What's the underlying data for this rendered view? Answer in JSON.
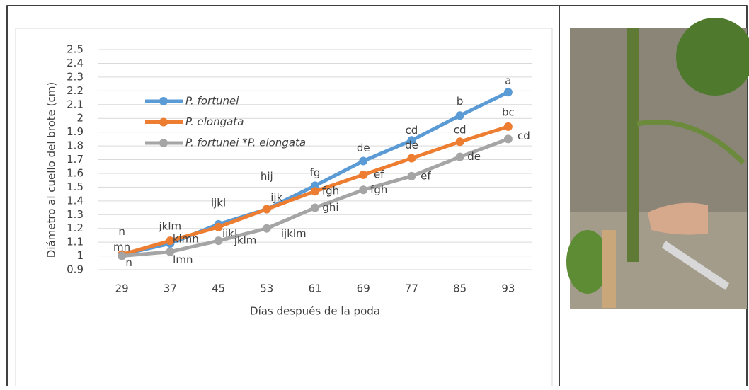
{
  "chart_data": {
    "type": "line",
    "y_label": "Diámetro al cuello del brote (cm)",
    "x_label": "Días después de la poda",
    "categories": [
      29,
      37,
      45,
      53,
      61,
      69,
      77,
      85,
      93
    ],
    "ylim": [
      0.9,
      2.5
    ],
    "yticks": [
      0.9,
      1,
      1.1,
      1.2,
      1.3,
      1.4,
      1.5,
      1.6,
      1.7,
      1.8,
      1.9,
      2,
      2.1,
      2.2,
      2.3,
      2.4,
      2.5
    ],
    "grid": true,
    "series": [
      {
        "name": "P. fortunei",
        "color": "#5b9bd5",
        "values": [
          1.01,
          1.09,
          1.23,
          1.34,
          1.51,
          1.69,
          1.84,
          2.02,
          2.19
        ],
        "letters": [
          "n",
          "jklm",
          "ijkl",
          "hij",
          "fg",
          "de",
          "cd",
          "b",
          "a"
        ]
      },
      {
        "name": "P. elongata",
        "color": "#ed7d31",
        "values": [
          1.01,
          1.11,
          1.21,
          1.34,
          1.47,
          1.59,
          1.71,
          1.83,
          1.94
        ],
        "letters": [
          "mn",
          "klmn",
          "ijkl",
          "ijk",
          "fgh",
          "ef",
          "de",
          "cd",
          "bc"
        ]
      },
      {
        "name": "P. fortunei *P. elongata",
        "color": "#a5a5a5",
        "values": [
          1.0,
          1.03,
          1.11,
          1.2,
          1.35,
          1.48,
          1.58,
          1.72,
          1.85
        ],
        "letters": [
          "n",
          "lmn",
          "jklm",
          "ijklm",
          "ghi",
          "fgh",
          "ef",
          "de",
          "cd"
        ]
      }
    ]
  }
}
